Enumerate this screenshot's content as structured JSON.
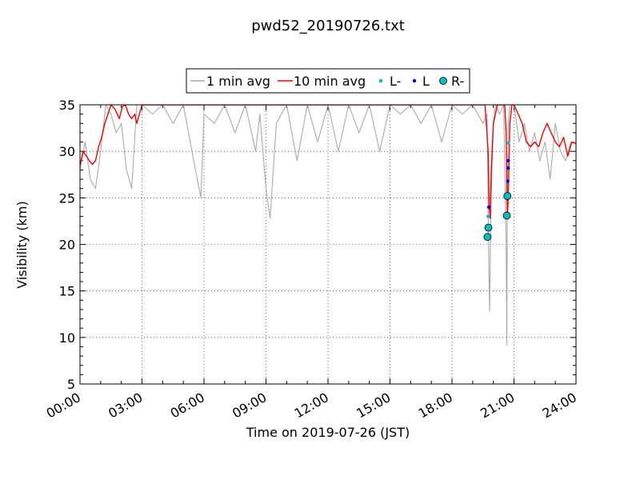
{
  "chart_data": {
    "type": "line",
    "title": "pwd52_20190726.txt",
    "xlabel": "Time on 2019-07-26 (JST)",
    "ylabel": "Visibility (km)",
    "xlim": [
      0,
      24
    ],
    "ylim": [
      5,
      35
    ],
    "xticks": [
      0,
      3,
      6,
      9,
      12,
      15,
      18,
      21,
      24
    ],
    "xtick_labels": [
      "00:00",
      "03:00",
      "06:00",
      "09:00",
      "12:00",
      "15:00",
      "18:00",
      "21:00",
      "24:00"
    ],
    "yticks": [
      5,
      10,
      15,
      20,
      25,
      30,
      35
    ],
    "grid": true,
    "legend_placement": "top-center, outside plot",
    "series": [
      {
        "name": "1 min avg",
        "kind": "line",
        "color": "#aaaaaa",
        "x": [
          0.0,
          0.25,
          0.5,
          0.75,
          1.0,
          1.25,
          1.5,
          1.75,
          2.0,
          2.25,
          2.5,
          2.75,
          3.0,
          3.5,
          4.0,
          4.5,
          5.0,
          5.5,
          5.85,
          6.0,
          6.5,
          7.0,
          7.5,
          8.0,
          8.5,
          8.7,
          9.0,
          9.2,
          9.5,
          10.0,
          10.5,
          11.0,
          11.5,
          12.0,
          12.5,
          13.0,
          13.5,
          14.0,
          14.5,
          15.0,
          15.5,
          16.0,
          16.5,
          17.0,
          17.5,
          18.0,
          18.5,
          19.0,
          19.5,
          19.7,
          19.78,
          19.82,
          19.87,
          19.92,
          20.0,
          20.1,
          20.3,
          20.5,
          20.62,
          20.65,
          20.68,
          20.72,
          20.8,
          20.9,
          21.0,
          21.25,
          21.5,
          21.75,
          22.0,
          22.25,
          22.5,
          22.75,
          23.0,
          23.25,
          23.5,
          23.75,
          24.0
        ],
        "y": [
          28,
          31,
          27,
          26,
          30,
          35,
          34,
          32,
          33,
          28,
          26,
          35,
          35,
          34,
          35,
          33,
          35,
          29,
          25,
          34,
          33,
          35,
          32,
          35,
          30,
          34,
          26,
          22.8,
          33,
          35,
          29,
          35,
          31,
          35,
          30,
          35,
          32,
          35,
          30,
          35,
          34,
          35,
          33,
          35,
          31,
          35,
          34,
          35,
          33,
          34,
          18,
          12.8,
          22,
          27,
          33,
          35,
          34,
          35,
          20,
          9.2,
          25,
          33,
          35,
          35,
          35,
          31,
          33,
          30,
          32,
          29,
          31,
          27,
          33,
          30,
          29,
          31,
          31
        ]
      },
      {
        "name": "10 min avg",
        "kind": "line",
        "color": "#ff0000",
        "x": [
          0.0,
          0.15,
          0.3,
          0.45,
          0.6,
          0.75,
          0.9,
          1.05,
          1.2,
          1.35,
          1.5,
          1.7,
          1.9,
          2.05,
          2.2,
          2.35,
          2.5,
          2.65,
          2.75,
          3.0,
          3.5,
          4.0,
          4.5,
          5.0,
          5.5,
          6.0,
          7.0,
          8.0,
          9.0,
          10.0,
          11.0,
          12.0,
          13.0,
          14.0,
          15.0,
          16.0,
          17.0,
          18.0,
          19.0,
          19.6,
          19.75,
          19.8,
          19.85,
          19.9,
          20.0,
          20.2,
          20.4,
          20.55,
          20.62,
          20.68,
          20.72,
          20.8,
          20.9,
          21.0,
          21.2,
          21.4,
          21.6,
          21.8,
          22.0,
          22.2,
          22.4,
          22.6,
          22.8,
          23.0,
          23.2,
          23.4,
          23.6,
          23.8,
          24.0
        ],
        "y": [
          28.5,
          30.0,
          29.5,
          29.0,
          28.6,
          29.0,
          30.5,
          31.5,
          33.0,
          34.0,
          35.0,
          34.5,
          33.5,
          34.8,
          35.0,
          34.0,
          33.5,
          34.0,
          33.0,
          35.0,
          35.0,
          35.0,
          35.0,
          35.0,
          35.0,
          35.0,
          35.0,
          35.0,
          35.0,
          35.0,
          35.0,
          35.0,
          35.0,
          35.0,
          35.0,
          35.0,
          35.0,
          35.0,
          35.0,
          35.0,
          30.0,
          24.0,
          22.8,
          28.0,
          33.0,
          35.0,
          35.0,
          35.0,
          32.0,
          23.0,
          25.0,
          33.0,
          35.0,
          35.0,
          34.0,
          33.0,
          31.0,
          30.5,
          31.0,
          30.5,
          32.0,
          33.0,
          32.0,
          31.0,
          30.5,
          31.5,
          29.5,
          31.0,
          30.8
        ]
      },
      {
        "name": "L-",
        "kind": "scatter",
        "marker": "small-dot",
        "color": "#00bfbf",
        "x": [
          19.75,
          20.72
        ],
        "y": [
          23.0,
          30.9
        ]
      },
      {
        "name": "L",
        "kind": "scatter",
        "marker": "small-dot",
        "color": "#0000ff",
        "x": [
          19.78,
          20.7,
          20.72,
          20.72
        ],
        "y": [
          24.0,
          26.8,
          28.2,
          29.0
        ]
      },
      {
        "name": "R-",
        "kind": "scatter",
        "marker": "large-circle",
        "color": "#00bfbf",
        "x": [
          19.72,
          19.76,
          20.65,
          20.68
        ],
        "y": [
          20.8,
          21.8,
          23.1,
          25.2
        ]
      }
    ]
  }
}
